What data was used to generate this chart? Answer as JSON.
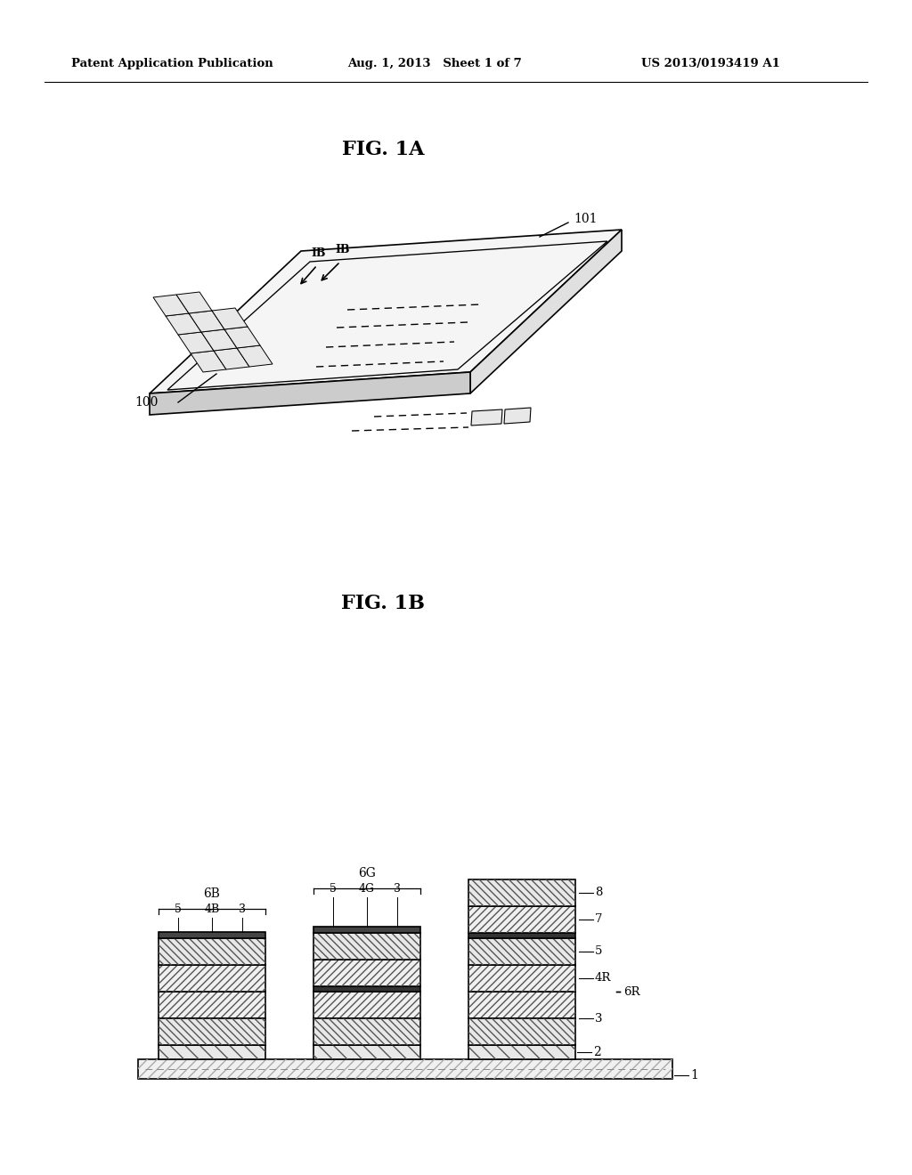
{
  "bg_color": "#ffffff",
  "text_color": "#000000",
  "header_left": "Patent Application Publication",
  "header_mid": "Aug. 1, 2013   Sheet 1 of 7",
  "header_right": "US 2013/0193419 A1",
  "fig1a_title": "FIG. 1A",
  "fig1b_title": "FIG. 1B",
  "line_color": "#000000"
}
